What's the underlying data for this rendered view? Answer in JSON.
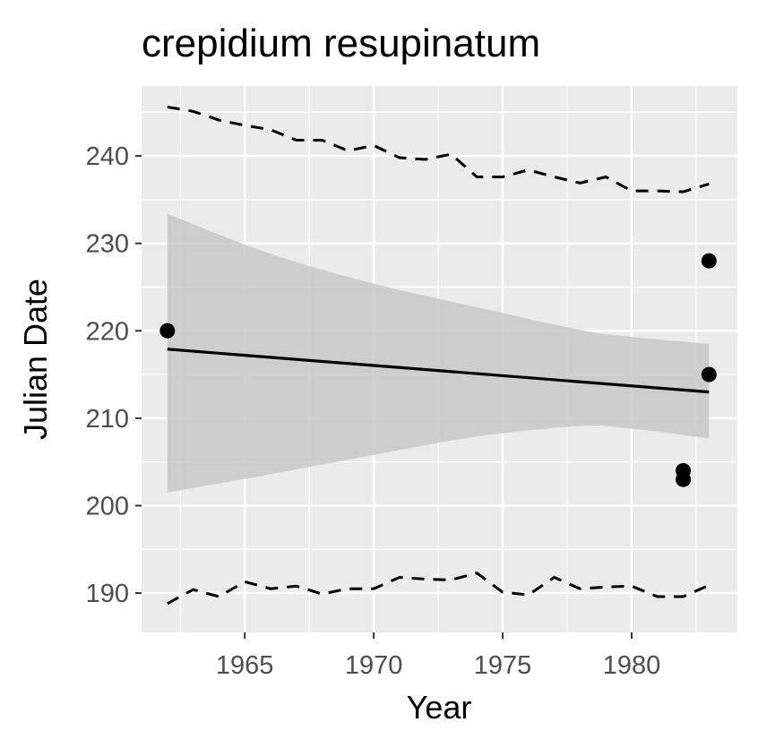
{
  "chart_data": {
    "type": "scatter",
    "title": "crepidium resupinatum",
    "xlabel": "Year",
    "ylabel": "Julian Date",
    "xlim": [
      1961.0,
      1984.1
    ],
    "ylim": [
      185.5,
      248.0
    ],
    "x_ticks": [
      1965,
      1970,
      1975,
      1980
    ],
    "y_ticks": [
      190,
      200,
      210,
      220,
      230,
      240
    ],
    "grid": true,
    "legend": "none",
    "colors": {
      "panel": "#ebebeb",
      "grid": "#ffffff",
      "points": "#000000",
      "ribbon": "#c8c8c8",
      "fit_line": "#000000",
      "bounds": "#000000"
    },
    "points": [
      {
        "x": 1962,
        "y": 220
      },
      {
        "x": 1982,
        "y": 204
      },
      {
        "x": 1982,
        "y": 203
      },
      {
        "x": 1983,
        "y": 228
      },
      {
        "x": 1983,
        "y": 215
      }
    ],
    "fit_line": {
      "x": [
        1962,
        1983
      ],
      "y": [
        217.9,
        213.0
      ]
    },
    "confidence_band": {
      "x": [
        1962,
        1966,
        1970,
        1974,
        1978,
        1980,
        1983
      ],
      "upper": [
        233.4,
        228.8,
        225.4,
        222.7,
        220.1,
        219.3,
        218.5
      ],
      "lower": [
        201.5,
        203.6,
        205.8,
        207.9,
        209.1,
        208.8,
        207.7
      ]
    },
    "upper_bound": {
      "x": [
        1962,
        1963,
        1964,
        1965,
        1966,
        1967,
        1968,
        1969,
        1970,
        1971,
        1972,
        1973,
        1974,
        1975,
        1976,
        1977,
        1978,
        1979,
        1980,
        1981,
        1982,
        1983
      ],
      "y": [
        245.6,
        245.1,
        244.1,
        243.5,
        243.0,
        241.8,
        241.8,
        240.6,
        241.2,
        239.8,
        239.6,
        240.2,
        237.6,
        237.6,
        238.4,
        237.6,
        236.9,
        237.6,
        236.0,
        236.0,
        235.9,
        236.8
      ]
    },
    "lower_bound": {
      "x": [
        1962,
        1963,
        1964,
        1965,
        1966,
        1967,
        1968,
        1969,
        1970,
        1971,
        1972,
        1973,
        1974,
        1975,
        1976,
        1977,
        1978,
        1979,
        1980,
        1981,
        1982,
        1983
      ],
      "y": [
        188.8,
        190.4,
        189.6,
        191.3,
        190.5,
        190.8,
        189.9,
        190.5,
        190.5,
        191.8,
        191.6,
        191.5,
        192.3,
        190.1,
        189.8,
        191.8,
        190.5,
        190.7,
        190.8,
        189.6,
        189.6,
        190.9
      ]
    }
  }
}
